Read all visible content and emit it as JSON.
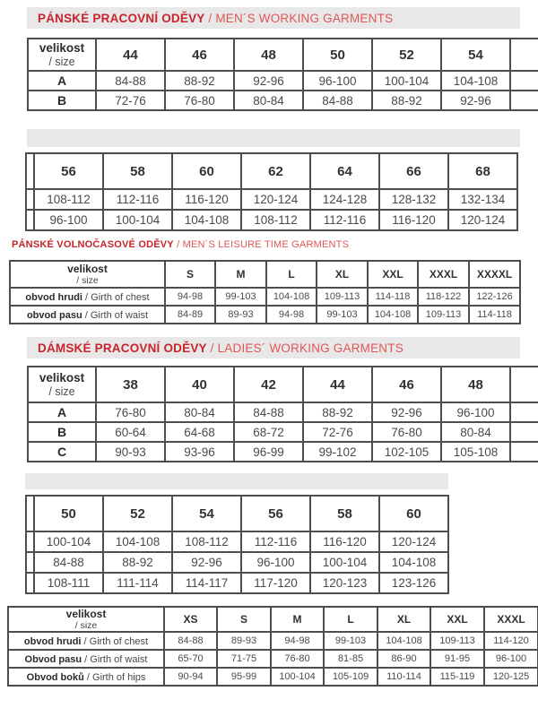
{
  "colors": {
    "section_title_red": "#c9232b",
    "section_subtitle_red": "#e05655",
    "spacer_bar_gray": "#e8e8e8",
    "table_border": "#4d4d4d",
    "cell_text": "#4a4a4a"
  },
  "headers": {
    "mens_working": {
      "cz": "PÁNSKÉ PRACOVNÍ ODĚVY",
      "en": " / MEN´S WORKING GARMENTS"
    },
    "mens_leisure": {
      "cz": "PÁNSKÉ VOLNOČASOVÉ ODĚVY",
      "en": " / MEN´S LEISURE TIME GARMENTS"
    },
    "ladies_working": {
      "cz": "DÁMSKÉ PRACOVNÍ ODĚVY",
      "en": " / LADIES´ WORKING GARMENTS"
    }
  },
  "tables": {
    "mens_working_part1": {
      "corner": {
        "line1": "velikost",
        "line2": "/ size"
      },
      "sizes": [
        "44",
        "46",
        "48",
        "50",
        "52",
        "54"
      ],
      "trailing_blank": true,
      "rows": [
        {
          "label": "A",
          "values": [
            "84-88",
            "88-92",
            "92-96",
            "96-100",
            "100-104",
            "104-108"
          ]
        },
        {
          "label": "B",
          "values": [
            "72-76",
            "76-80",
            "80-84",
            "84-88",
            "88-92",
            "92-96"
          ]
        }
      ]
    },
    "mens_working_part2": {
      "sliver": true,
      "sizes": [
        "56",
        "58",
        "60",
        "62",
        "64",
        "66",
        "68"
      ],
      "rows": [
        {
          "values": [
            "108-112",
            "112-116",
            "116-120",
            "120-124",
            "124-128",
            "128-132",
            "132-134"
          ]
        },
        {
          "values": [
            "96-100",
            "100-104",
            "104-108",
            "108-112",
            "112-116",
            "116-120",
            "120-124"
          ]
        }
      ]
    },
    "mens_leisure": {
      "corner": {
        "line1": "velikost",
        "line2": "/ size"
      },
      "sizes": [
        "S",
        "M",
        "L",
        "XL",
        "XXL",
        "XXXL",
        "XXXXL"
      ],
      "rows": [
        {
          "label_cz": "obvod hrudi",
          "label_en": " / Girth of chest",
          "values": [
            "94-98",
            "99-103",
            "104-108",
            "109-113",
            "114-118",
            "118-122",
            "122-126"
          ]
        },
        {
          "label_cz": "obvod pasu",
          "label_en": " / Girth of waist",
          "values": [
            "84-89",
            "89-93",
            "94-98",
            "99-103",
            "104-108",
            "109-113",
            "114-118"
          ]
        }
      ]
    },
    "ladies_working_part1": {
      "corner": {
        "line1": "velikost",
        "line2": "/ size"
      },
      "sizes": [
        "38",
        "40",
        "42",
        "44",
        "46",
        "48"
      ],
      "trailing_blank": true,
      "rows": [
        {
          "label": "A",
          "values": [
            "76-80",
            "80-84",
            "84-88",
            "88-92",
            "92-96",
            "96-100"
          ]
        },
        {
          "label": "B",
          "values": [
            "60-64",
            "64-68",
            "68-72",
            "72-76",
            "76-80",
            "80-84"
          ]
        },
        {
          "label": "C",
          "values": [
            "90-93",
            "93-96",
            "96-99",
            "99-102",
            "102-105",
            "105-108"
          ]
        }
      ]
    },
    "ladies_working_part2": {
      "sliver": true,
      "sizes": [
        "50",
        "52",
        "54",
        "56",
        "58",
        "60"
      ],
      "rows": [
        {
          "values": [
            "100-104",
            "104-108",
            "108-112",
            "112-116",
            "116-120",
            "120-124"
          ]
        },
        {
          "values": [
            "84-88",
            "88-92",
            "92-96",
            "96-100",
            "100-104",
            "104-108"
          ]
        },
        {
          "values": [
            "108-111",
            "111-114",
            "114-117",
            "117-120",
            "120-123",
            "123-126"
          ]
        }
      ]
    },
    "letter_sizes": {
      "corner": {
        "line1": "velikost",
        "line2": "/ size"
      },
      "sizes": [
        "XS",
        "S",
        "M",
        "L",
        "XL",
        "XXL",
        "XXXL"
      ],
      "rows": [
        {
          "label_cz": "obvod hrudi",
          "label_en": " / Girth of chest",
          "values": [
            "84-88",
            "89-93",
            "94-98",
            "99-103",
            "104-108",
            "109-113",
            "114-120"
          ]
        },
        {
          "label_cz": "Obvod pasu",
          "label_en": " / Girth of waist",
          "values": [
            "65-70",
            "71-75",
            "76-80",
            "81-85",
            "86-90",
            "91-95",
            "96-100"
          ]
        },
        {
          "label_cz": "Obvod boků",
          "label_en": " / Girth of hips",
          "values": [
            "90-94",
            "95-99",
            "100-104",
            "105-109",
            "110-114",
            "115-119",
            "120-125"
          ]
        }
      ]
    }
  }
}
